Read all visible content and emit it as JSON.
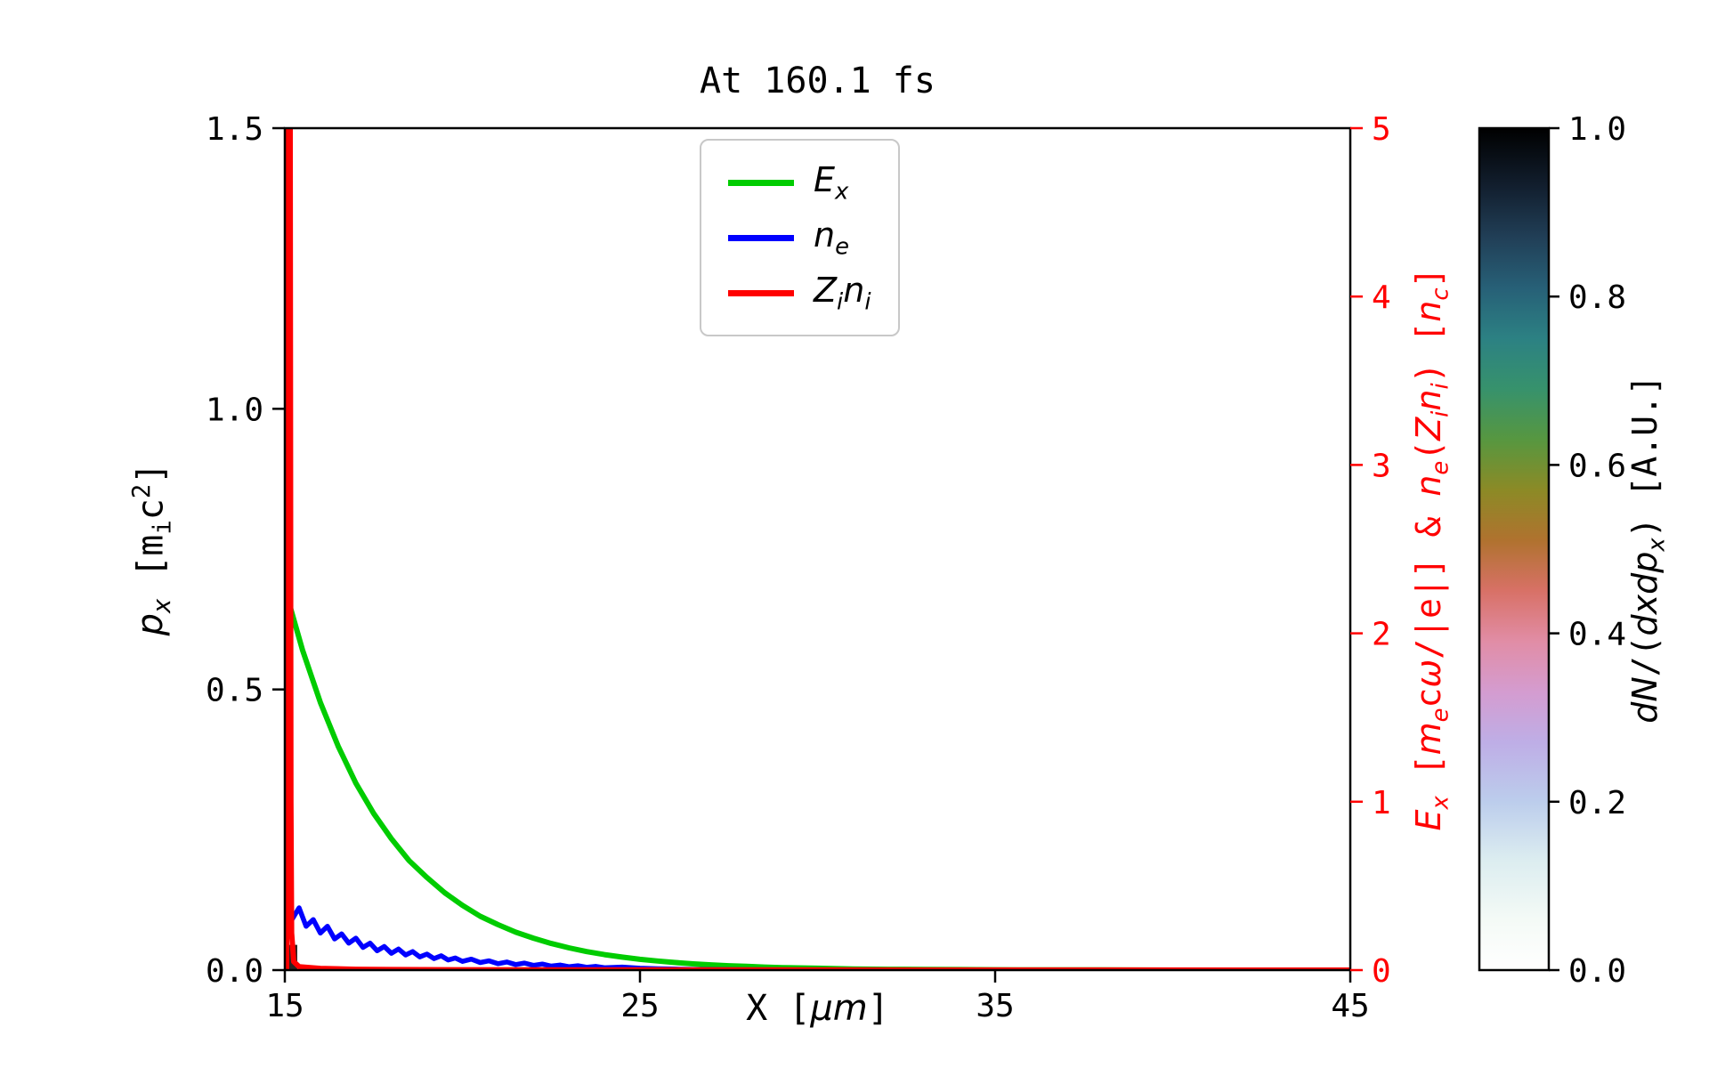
{
  "chart_data": {
    "type": "line",
    "title": "At 160.1 fs",
    "xlabel": "X [μm]",
    "ylabel_left": "p_x [m_i c^2]",
    "ylabel_right": "E_x [m_e cω/|e|] & n_e(Z_i n_i) [n_c]",
    "colorbar_label": "dN/(dxdp_x) [A.U.]",
    "xlim": [
      15,
      45
    ],
    "ylim_left": [
      0.0,
      1.5
    ],
    "ylim_right": [
      0,
      5
    ],
    "right_axis_color": "#ff0000",
    "grid": false,
    "legend_position": "upper center",
    "xticks": [
      {
        "v": 15,
        "label": "15"
      },
      {
        "v": 25,
        "label": "25"
      },
      {
        "v": 35,
        "label": "35"
      },
      {
        "v": 45,
        "label": "45"
      }
    ],
    "yticks_left": [
      {
        "v": 0.0,
        "label": "0.0"
      },
      {
        "v": 0.5,
        "label": "0.5"
      },
      {
        "v": 1.0,
        "label": "1.0"
      },
      {
        "v": 1.5,
        "label": "1.5"
      }
    ],
    "yticks_right": [
      {
        "v": 0,
        "label": "0"
      },
      {
        "v": 1,
        "label": "1"
      },
      {
        "v": 2,
        "label": "2"
      },
      {
        "v": 3,
        "label": "3"
      },
      {
        "v": 4,
        "label": "4"
      },
      {
        "v": 5,
        "label": "5"
      }
    ],
    "colorbar_ticks": [
      {
        "v": 0.0,
        "label": "0.0"
      },
      {
        "v": 0.2,
        "label": "0.2"
      },
      {
        "v": 0.4,
        "label": "0.4"
      },
      {
        "v": 0.6,
        "label": "0.6"
      },
      {
        "v": 0.8,
        "label": "0.8"
      },
      {
        "v": 1.0,
        "label": "1.0"
      }
    ],
    "legend": [
      {
        "label": "E_x",
        "label_html": "<i>E<sub>x</sub></i>",
        "color": "#00cc00"
      },
      {
        "label": "n_e",
        "label_html": "<i>n<sub>e</sub></i>",
        "color": "#0000ff"
      },
      {
        "label": "Z_i n_i",
        "label_html": "<i>Z<sub>i</sub>n<sub>i</sub></i>",
        "color": "#ff0000"
      }
    ],
    "histogram_patch": {
      "x": [
        15.0,
        15.35
      ],
      "px": [
        0.0,
        0.045
      ],
      "color": "#2b2320"
    },
    "series": [
      {
        "id": "ex",
        "name": "E_x",
        "color": "#00cc00",
        "axis": "right",
        "width": 6,
        "points": [
          [
            15.0,
            0.02
          ],
          [
            15.04,
            0.5
          ],
          [
            15.08,
            1.3
          ],
          [
            15.12,
            1.95
          ],
          [
            15.16,
            2.15
          ],
          [
            15.5,
            1.9
          ],
          [
            16,
            1.59
          ],
          [
            16.5,
            1.33
          ],
          [
            17,
            1.11
          ],
          [
            17.5,
            0.93
          ],
          [
            18,
            0.78
          ],
          [
            18.5,
            0.65
          ],
          [
            19,
            0.55
          ],
          [
            19.5,
            0.46
          ],
          [
            20,
            0.385
          ],
          [
            20.5,
            0.32
          ],
          [
            21,
            0.27
          ],
          [
            21.5,
            0.225
          ],
          [
            22,
            0.19
          ],
          [
            22.5,
            0.158
          ],
          [
            23,
            0.132
          ],
          [
            23.5,
            0.11
          ],
          [
            24,
            0.092
          ],
          [
            24.5,
            0.077
          ],
          [
            25,
            0.064
          ],
          [
            25.5,
            0.054
          ],
          [
            26,
            0.045
          ],
          [
            26.5,
            0.037
          ],
          [
            27,
            0.031
          ],
          [
            27.5,
            0.026
          ],
          [
            28,
            0.022
          ],
          [
            28.5,
            0.018
          ],
          [
            29,
            0.015
          ],
          [
            30,
            0.011
          ],
          [
            31,
            0.007
          ],
          [
            32,
            0.005
          ],
          [
            33,
            0.004
          ],
          [
            34,
            0.003
          ],
          [
            35,
            0.002
          ],
          [
            36,
            0.001
          ],
          [
            38,
            0.001
          ],
          [
            40,
            0
          ],
          [
            42,
            0
          ],
          [
            45,
            0
          ]
        ]
      },
      {
        "id": "ne",
        "name": "n_e",
        "color": "#0000ff",
        "axis": "right",
        "width": 5.5,
        "points": [
          [
            15.0,
            0.42
          ],
          [
            15.2,
            0.3
          ],
          [
            15.4,
            0.37
          ],
          [
            15.6,
            0.26
          ],
          [
            15.8,
            0.3
          ],
          [
            16.0,
            0.22
          ],
          [
            16.2,
            0.26
          ],
          [
            16.4,
            0.185
          ],
          [
            16.6,
            0.215
          ],
          [
            16.8,
            0.16
          ],
          [
            17.0,
            0.19
          ],
          [
            17.2,
            0.135
          ],
          [
            17.4,
            0.16
          ],
          [
            17.6,
            0.115
          ],
          [
            17.8,
            0.14
          ],
          [
            18.0,
            0.1
          ],
          [
            18.2,
            0.125
          ],
          [
            18.4,
            0.09
          ],
          [
            18.6,
            0.11
          ],
          [
            18.8,
            0.078
          ],
          [
            19.0,
            0.095
          ],
          [
            19.2,
            0.068
          ],
          [
            19.4,
            0.085
          ],
          [
            19.6,
            0.06
          ],
          [
            19.8,
            0.072
          ],
          [
            20.0,
            0.052
          ],
          [
            20.25,
            0.065
          ],
          [
            20.5,
            0.045
          ],
          [
            20.75,
            0.055
          ],
          [
            21.0,
            0.038
          ],
          [
            21.25,
            0.048
          ],
          [
            21.5,
            0.033
          ],
          [
            21.75,
            0.042
          ],
          [
            22.0,
            0.028
          ],
          [
            22.25,
            0.036
          ],
          [
            22.5,
            0.024
          ],
          [
            22.75,
            0.03
          ],
          [
            23.0,
            0.02
          ],
          [
            23.25,
            0.026
          ],
          [
            23.5,
            0.017
          ],
          [
            23.75,
            0.022
          ],
          [
            24.0,
            0.014
          ],
          [
            24.5,
            0.018
          ],
          [
            25.0,
            0.011
          ],
          [
            25.5,
            0.008
          ],
          [
            26.0,
            0.006
          ],
          [
            26.5,
            0.004
          ],
          [
            27.0,
            0.003
          ],
          [
            28.0,
            0.002
          ],
          [
            30.0,
            0.001
          ],
          [
            32.0,
            0.001
          ],
          [
            35.0,
            0
          ],
          [
            40.0,
            0
          ],
          [
            45.0,
            0
          ]
        ]
      },
      {
        "id": "zini",
        "name": "Z_i n_i",
        "color": "#ff0000",
        "axis": "right",
        "width": 6,
        "points": [
          [
            15.0,
            0.0
          ],
          [
            15.05,
            0.0
          ],
          [
            15.07,
            4.0
          ],
          [
            15.09,
            5.0
          ],
          [
            15.15,
            5.0
          ],
          [
            15.17,
            1.0
          ],
          [
            15.19,
            0.22
          ],
          [
            15.25,
            0.05
          ],
          [
            15.4,
            0.02
          ],
          [
            16.0,
            0.01
          ],
          [
            17.0,
            0.005
          ],
          [
            18.0,
            0.003
          ],
          [
            20.0,
            0.002
          ],
          [
            25.0,
            0.001
          ],
          [
            30.0,
            0.001
          ],
          [
            45.0,
            0.0
          ]
        ]
      }
    ],
    "colormap_stops": [
      [
        0.0,
        "#ffffff"
      ],
      [
        0.06,
        "#f4faf6"
      ],
      [
        0.13,
        "#dcedf0"
      ],
      [
        0.2,
        "#bccdec"
      ],
      [
        0.27,
        "#beaee6"
      ],
      [
        0.33,
        "#d49cd0"
      ],
      [
        0.39,
        "#e18da6"
      ],
      [
        0.45,
        "#d87167"
      ],
      [
        0.51,
        "#b0722f"
      ],
      [
        0.57,
        "#8c8a26"
      ],
      [
        0.63,
        "#579740"
      ],
      [
        0.69,
        "#37926c"
      ],
      [
        0.75,
        "#2c8183"
      ],
      [
        0.81,
        "#276077"
      ],
      [
        0.87,
        "#213f57"
      ],
      [
        0.93,
        "#121f2f"
      ],
      [
        1.0,
        "#000000"
      ]
    ]
  },
  "labels": {
    "xlabel_html": "X [<i>μm</i>]",
    "ylabel_left_html": "<i>p<sub>x</sub></i> [m<sub>i</sub>c<sup>2</sup>]",
    "ylabel_right_html": "<i>E<sub>x</sub></i> [<i>m<sub>e</sub></i>c<i>ω</i>/|e|] &amp; <i>n<sub>e</sub></i>(<i>Z<sub>i</sub>n<sub>i</sub></i>) [<i>n<sub>c</sub></i>]",
    "colorbar_label_html": "<i>dN</i>/(<i>dxdp<sub>x</sub></i>) [A.U.]"
  }
}
